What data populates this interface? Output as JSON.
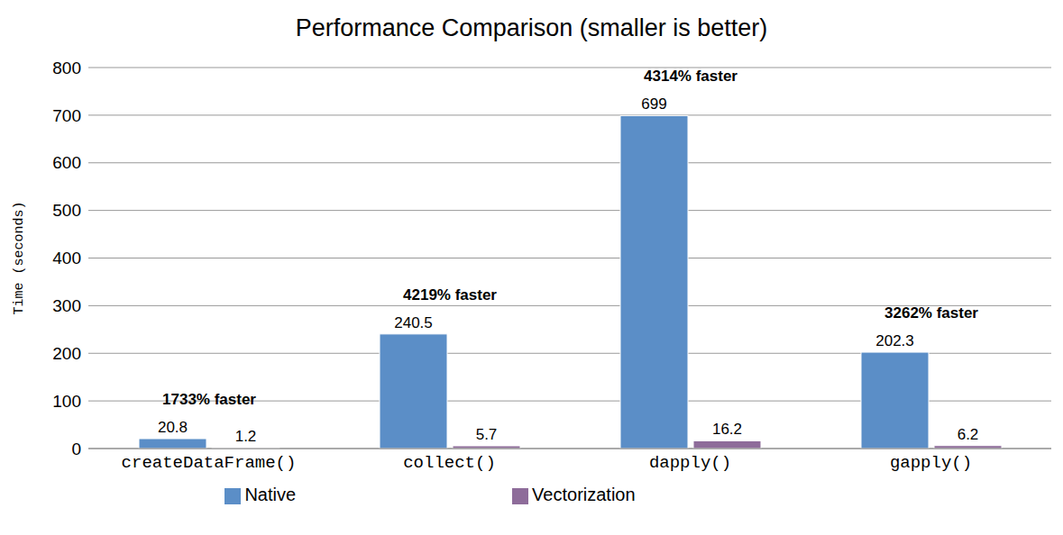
{
  "chart_data": {
    "type": "bar",
    "title": "Performance Comparison (smaller is better)",
    "y_label": "Time (seconds)",
    "categories": [
      "createDataFrame()",
      "collect()",
      "dapply()",
      "gapply()"
    ],
    "series": [
      {
        "name": "Native",
        "color": "#5b8ec7",
        "values": [
          20.8,
          240.5,
          699,
          202.3
        ]
      },
      {
        "name": "Vectorization",
        "color": "#8e6c9a",
        "values": [
          1.2,
          5.7,
          16.2,
          6.2
        ]
      }
    ],
    "annotations": [
      "1733% faster",
      "4219% faster",
      "4314% faster",
      "3262% faster"
    ],
    "ylim": [
      0,
      800
    ],
    "yticks": [
      0,
      100,
      200,
      300,
      400,
      500,
      600,
      700,
      800
    ],
    "grid": true,
    "legend": "bottom",
    "data_labels": true
  }
}
